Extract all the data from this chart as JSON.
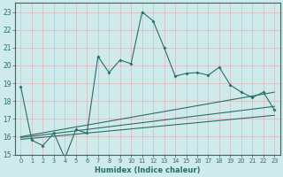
{
  "xlabel": "Humidex (Indice chaleur)",
  "background_color": "#ceeaea",
  "grid_color": "#b8d8d8",
  "line_color": "#2a6e68",
  "xlim": [
    -0.5,
    23.5
  ],
  "ylim": [
    15,
    23.5
  ],
  "xticks": [
    0,
    1,
    2,
    3,
    4,
    5,
    6,
    7,
    8,
    9,
    10,
    11,
    12,
    13,
    14,
    15,
    16,
    17,
    18,
    19,
    20,
    21,
    22,
    23
  ],
  "yticks": [
    15,
    16,
    17,
    18,
    19,
    20,
    21,
    22,
    23
  ],
  "series1_x": [
    0,
    1,
    2,
    3,
    4,
    5,
    6,
    7,
    8,
    9,
    10,
    11,
    12,
    13,
    14,
    15,
    16,
    17,
    18,
    19,
    20,
    21,
    22,
    23
  ],
  "series1_y": [
    18.8,
    15.8,
    15.5,
    16.2,
    14.8,
    16.4,
    16.2,
    20.5,
    19.6,
    20.3,
    20.1,
    23.0,
    22.5,
    21.0,
    19.4,
    19.55,
    19.6,
    19.45,
    19.9,
    18.9,
    18.5,
    18.2,
    18.5,
    17.5
  ],
  "series2_x": [
    0,
    23
  ],
  "series2_y": [
    16.0,
    18.5
  ],
  "series3_x": [
    0,
    23
  ],
  "series3_y": [
    15.95,
    17.7
  ],
  "series4_x": [
    0,
    23
  ],
  "series4_y": [
    15.85,
    17.2
  ]
}
